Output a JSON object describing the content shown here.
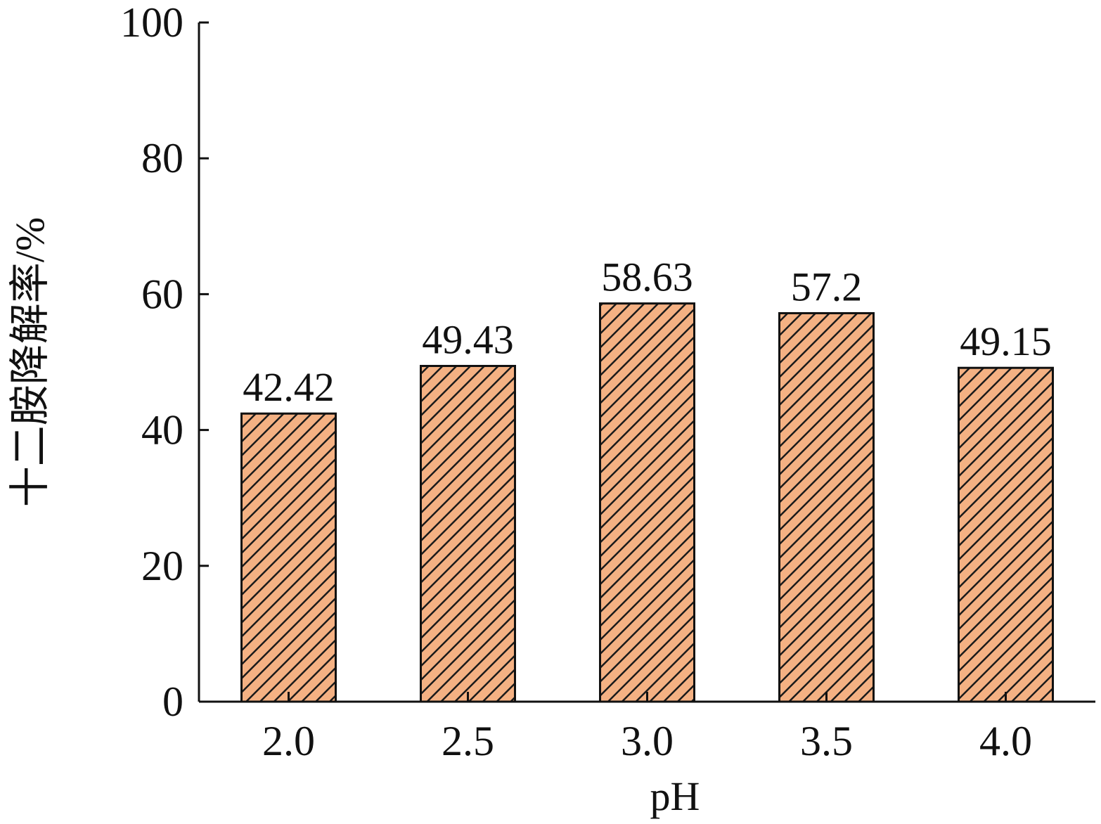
{
  "chart_data": {
    "type": "bar",
    "categories": [
      "2.0",
      "2.5",
      "3.0",
      "3.5",
      "4.0"
    ],
    "values": [
      42.42,
      49.43,
      58.63,
      57.2,
      49.15
    ],
    "data_labels": [
      "42.42",
      "49.43",
      "58.63",
      "57.2",
      "49.15"
    ],
    "xlabel": "pH",
    "ylabel": "十二胺降解率/%",
    "ylim": [
      0,
      100
    ],
    "yticks": [
      "0",
      "20",
      "40",
      "60",
      "80",
      "100"
    ],
    "ytick_values": [
      0,
      20,
      40,
      60,
      80,
      100
    ],
    "grid": false,
    "bar_fill": "#f4b183",
    "hatch_color": "#1a1a1a",
    "axis_color": "#111111"
  }
}
